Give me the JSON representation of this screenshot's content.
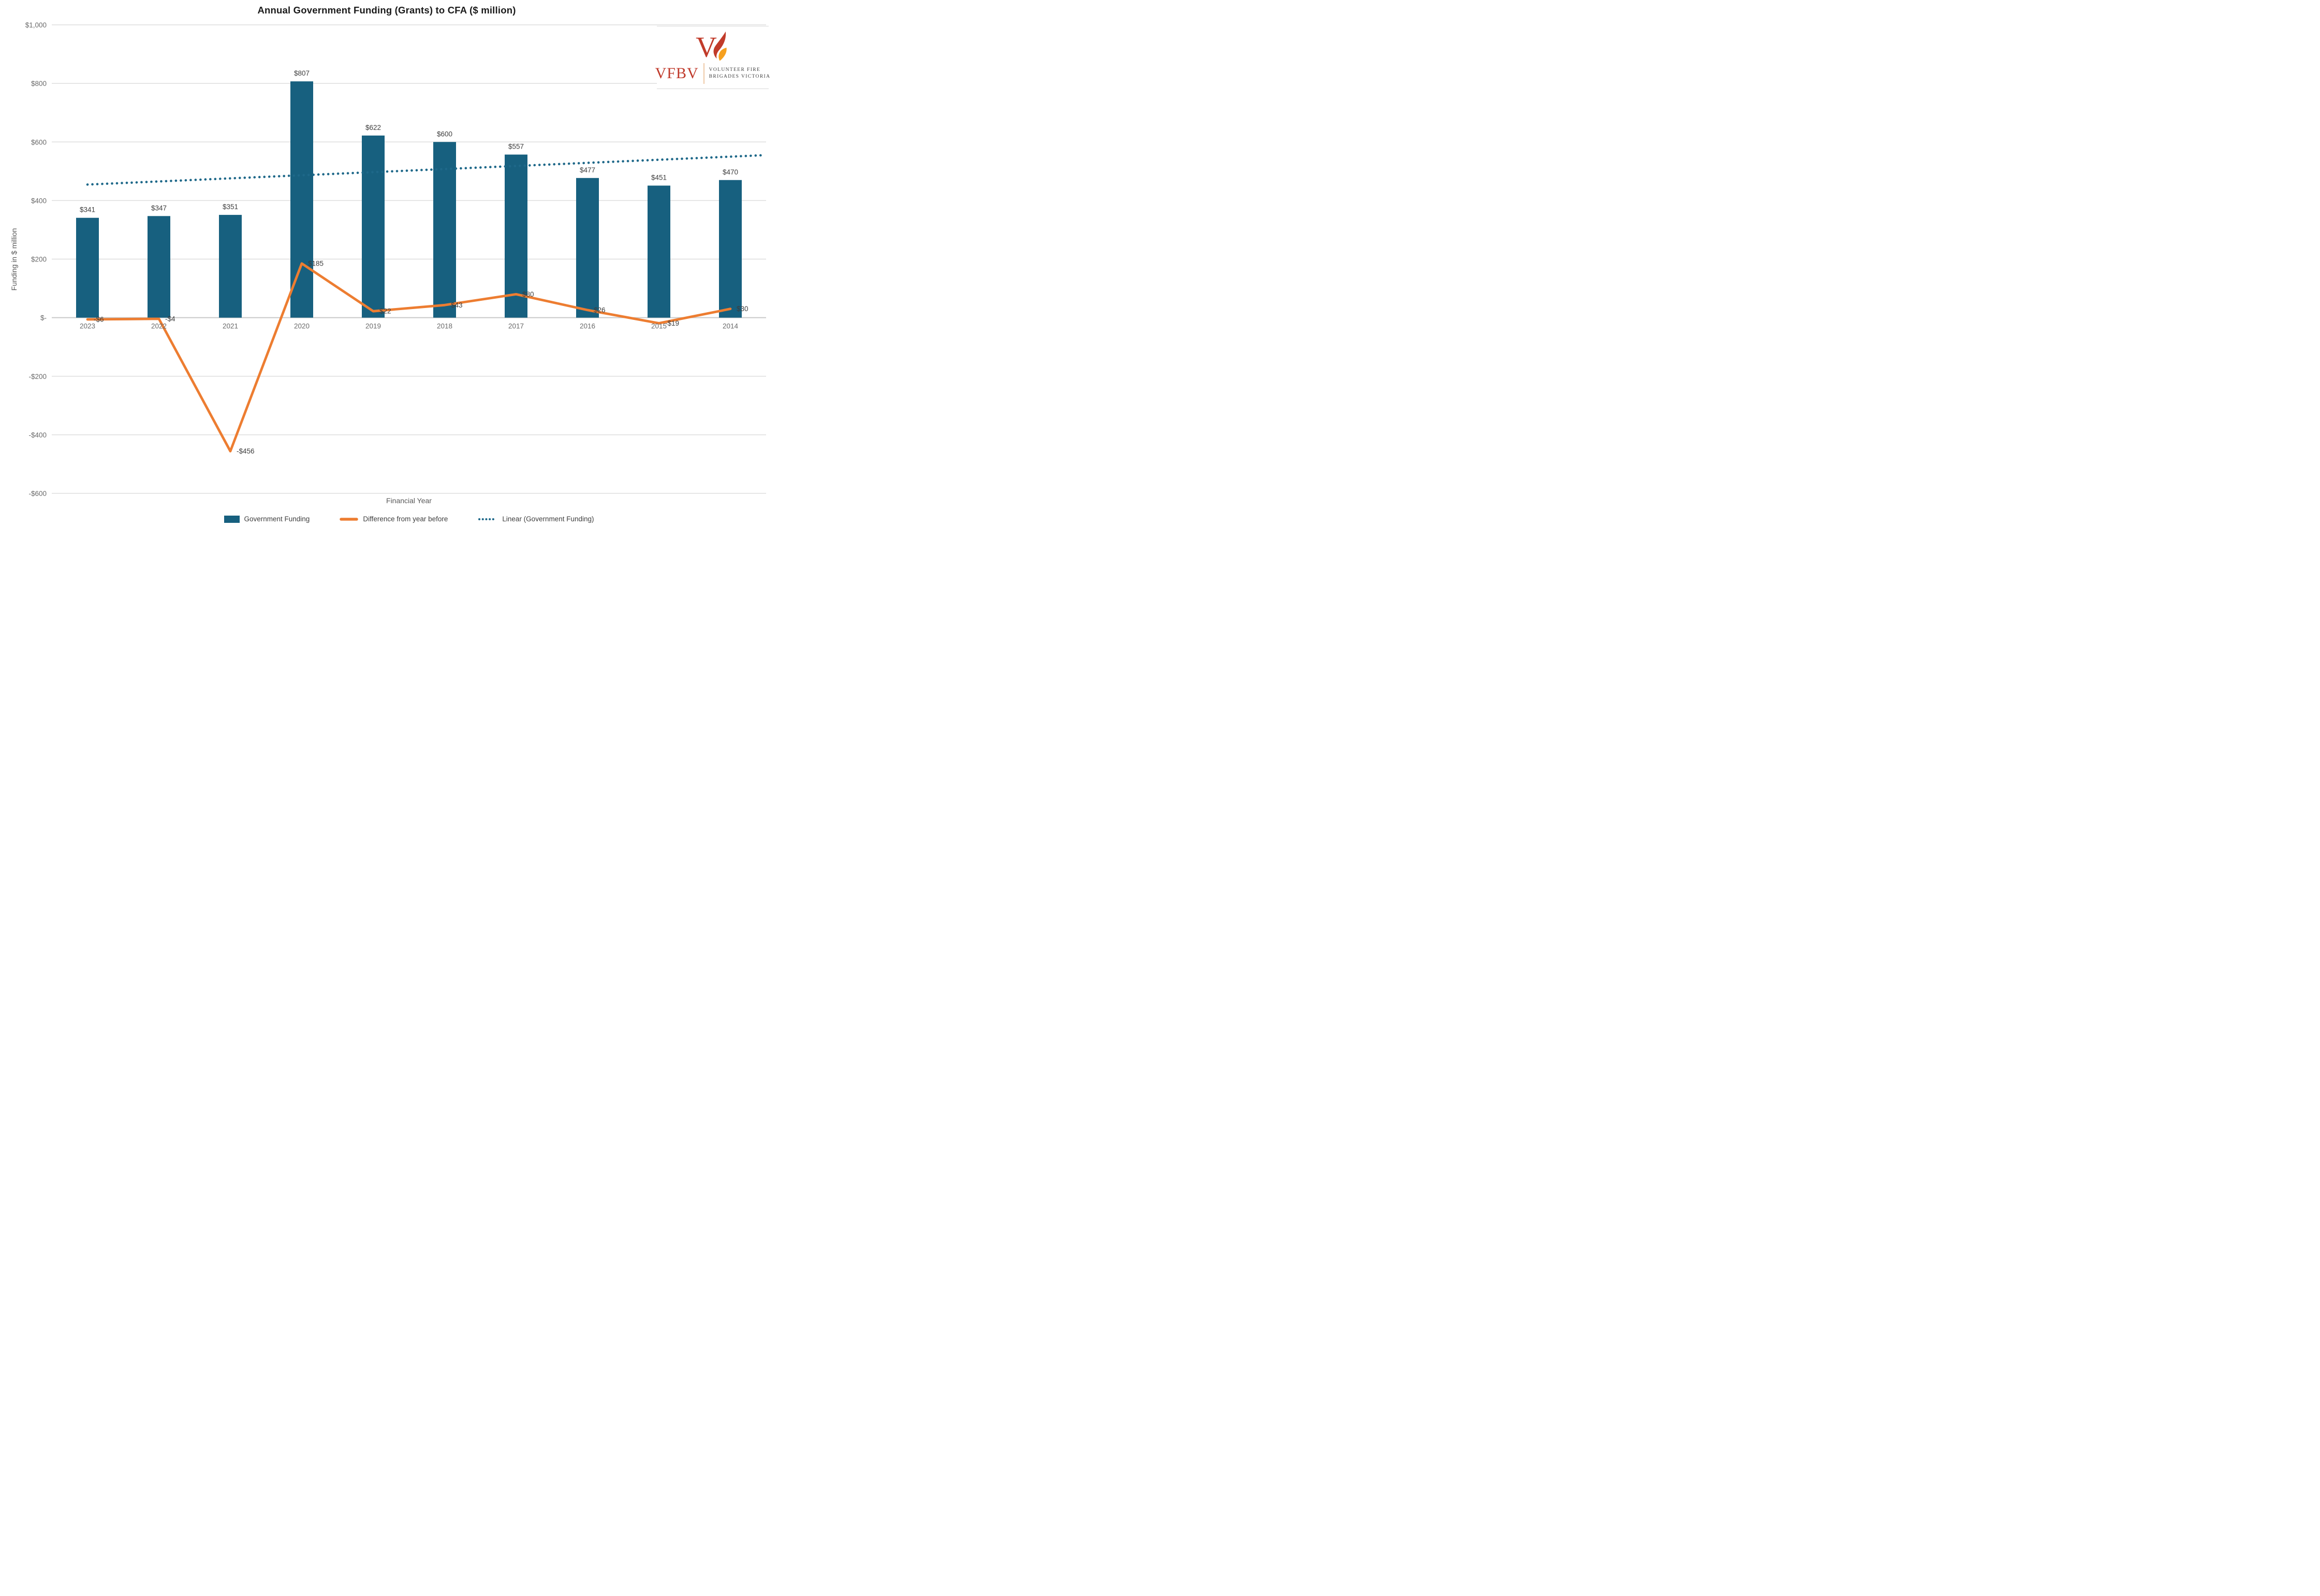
{
  "title": "Annual Government Funding (Grants) to CFA ($ million)",
  "logo": {
    "abbr": "VFBV",
    "org_line1": "VOLUNTEER FIRE",
    "org_line2": "BRIGADES VICTORIA",
    "red": "#c13b2a",
    "flame_orange": "#f6a01e"
  },
  "chart_data": {
    "type": "bar",
    "title": "Annual Government Funding (Grants) to CFA ($ million)",
    "xlabel": "Financial Year",
    "ylabel": "Funding in $ million",
    "categories": [
      "2023",
      "2022",
      "2021",
      "2020",
      "2019",
      "2018",
      "2017",
      "2016",
      "2015",
      "2014"
    ],
    "series": [
      {
        "name": "Government Funding",
        "type": "bar",
        "color": "#17607f",
        "values": [
          341,
          347,
          351,
          807,
          622,
          600,
          557,
          477,
          451,
          470
        ],
        "labels": [
          "$341",
          "$347",
          "$351",
          "$807",
          "$622",
          "$600",
          "$557",
          "$477",
          "$451",
          "$470"
        ]
      },
      {
        "name": "Difference from year before",
        "type": "line",
        "color": "#ed7d31",
        "values": [
          -6,
          -4,
          -456,
          185,
          22,
          43,
          80,
          26,
          -19,
          30
        ],
        "labels": [
          "-$6",
          "-$4",
          "-$456",
          "$185",
          "$22",
          "$43",
          "$80",
          "$26",
          "-$19",
          "$30"
        ]
      },
      {
        "name": "Linear (Government Funding)",
        "type": "trendline",
        "style": "dotted",
        "color": "#1e6889",
        "start_value": 454.6,
        "end_value": 549.9
      }
    ],
    "y_axis": {
      "range": [
        -600,
        1000
      ],
      "ticks": [
        {
          "label": "$1,000",
          "value": 1000
        },
        {
          "label": "$800",
          "value": 800
        },
        {
          "label": "$600",
          "value": 600
        },
        {
          "label": "$400",
          "value": 400
        },
        {
          "label": "$200",
          "value": 200
        },
        {
          "label": "$-",
          "value": 0
        },
        {
          "label": "-$200",
          "value": -200
        },
        {
          "label": "-$400",
          "value": -400
        },
        {
          "label": "-$600",
          "value": -600
        }
      ]
    },
    "grid": true,
    "legend_position": "bottom"
  }
}
